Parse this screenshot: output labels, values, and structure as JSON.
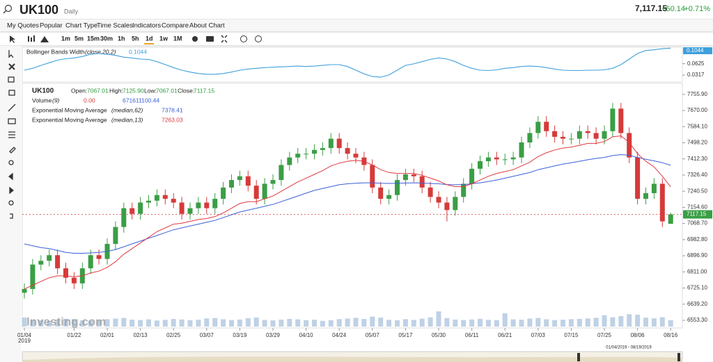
{
  "header": {
    "symbol": "UK100",
    "period": "Daily",
    "price": "7,117.15",
    "change": "+50.14",
    "change_pct": "+0.71%"
  },
  "menu": [
    "My Quotes",
    "Popular",
    "Chart Type",
    "Time Scales",
    "Indicators",
    "Compare",
    "About Chart"
  ],
  "intervals": [
    "1m",
    "5m",
    "15m",
    "30m",
    "1h",
    "5h",
    "1d",
    "1w",
    "1M"
  ],
  "watermark": "Investing.com",
  "navigator_range": "01/04/2019 - 08/19/2019",
  "chart_data": [
    {
      "type": "line",
      "title": "Bollinger Bands Width",
      "subtitle": "(close,20,2)",
      "color": "#3ea0dc",
      "values": [
        0.045,
        0.05,
        0.058,
        0.065,
        0.072,
        0.076,
        0.078,
        0.082,
        0.088,
        0.09,
        0.088,
        0.085,
        0.08,
        0.078,
        0.075,
        0.074,
        0.068,
        0.06,
        0.052,
        0.045,
        0.04,
        0.036,
        0.034,
        0.034,
        0.036,
        0.04,
        0.045,
        0.048,
        0.05,
        0.052,
        0.053,
        0.054,
        0.055,
        0.056,
        0.055,
        0.056,
        0.058,
        0.06,
        0.06,
        0.055,
        0.045,
        0.035,
        0.028,
        0.026,
        0.032,
        0.045,
        0.058,
        0.062,
        0.068,
        0.074,
        0.078,
        0.075,
        0.068,
        0.058,
        0.05,
        0.045,
        0.044,
        0.046,
        0.05,
        0.052,
        0.055,
        0.056,
        0.055,
        0.052,
        0.048,
        0.045,
        0.044,
        0.044,
        0.045,
        0.045,
        0.046,
        0.05,
        0.06,
        0.075,
        0.09,
        0.098,
        0.1,
        0.103,
        0.1044
      ],
      "ylim": [
        0.015,
        0.105
      ],
      "yticks": [
        0.0317,
        0.0625
      ]
    },
    {
      "type": "candlestick",
      "title": "UK100",
      "legend_labels": [
        "Open:",
        "High:",
        "Low:",
        "Close:"
      ],
      "last_labels": [
        "7067.01",
        "7125.90",
        "7067.01",
        "7117.15"
      ],
      "up_color": "#3a9e45",
      "down_color": "#d63a3a",
      "categories": [
        "01/04",
        null,
        null,
        null,
        null,
        null,
        "01/22",
        null,
        null,
        null,
        "02/01",
        null,
        null,
        null,
        "02/13",
        null,
        null,
        null,
        "02/25",
        null,
        null,
        null,
        "03/07",
        null,
        null,
        null,
        "03/19",
        null,
        null,
        null,
        "03/29",
        null,
        null,
        null,
        "04/10",
        null,
        null,
        null,
        "04/24",
        null,
        null,
        null,
        "05/07",
        null,
        null,
        null,
        "05/17",
        null,
        null,
        null,
        "05/30",
        null,
        null,
        null,
        "06/11",
        null,
        null,
        null,
        "06/21",
        null,
        null,
        null,
        "07/03",
        null,
        null,
        null,
        "07/15",
        null,
        null,
        null,
        "07/25",
        null,
        null,
        null,
        "08/06",
        null,
        null,
        null,
        "08/16"
      ],
      "x_sublabel": "2019",
      "open": [
        6700,
        6720,
        6850,
        6870,
        6900,
        6830,
        6780,
        6750,
        6830,
        6900,
        6880,
        6960,
        7050,
        7150,
        7120,
        7180,
        7190,
        7220,
        7200,
        7180,
        7120,
        7150,
        7180,
        7150,
        7200,
        7260,
        7300,
        7320,
        7270,
        7200,
        7280,
        7300,
        7380,
        7420,
        7440,
        7440,
        7460,
        7470,
        7520,
        7470,
        7440,
        7420,
        7380,
        7260,
        7200,
        7220,
        7300,
        7330,
        7320,
        7260,
        7210,
        7180,
        7140,
        7210,
        7280,
        7360,
        7400,
        7420,
        7410,
        7410,
        7420,
        7500,
        7550,
        7610,
        7560,
        7530,
        7520,
        7520,
        7560,
        7550,
        7520,
        7560,
        7680,
        7550,
        7420,
        7200,
        7230,
        7280,
        7067.01
      ],
      "high": [
        6750,
        6880,
        6900,
        6930,
        6930,
        6860,
        6810,
        6860,
        6930,
        6930,
        6990,
        7080,
        7180,
        7180,
        7210,
        7220,
        7250,
        7250,
        7230,
        7210,
        7180,
        7210,
        7210,
        7230,
        7290,
        7330,
        7350,
        7350,
        7300,
        7310,
        7330,
        7410,
        7450,
        7470,
        7470,
        7490,
        7500,
        7550,
        7550,
        7500,
        7470,
        7450,
        7410,
        7290,
        7250,
        7330,
        7360,
        7360,
        7350,
        7290,
        7240,
        7210,
        7240,
        7310,
        7390,
        7430,
        7450,
        7450,
        7440,
        7450,
        7530,
        7580,
        7640,
        7640,
        7590,
        7560,
        7550,
        7590,
        7590,
        7580,
        7590,
        7710,
        7710,
        7580,
        7450,
        7260,
        7310,
        7310,
        7125.9
      ],
      "low": [
        6670,
        6690,
        6820,
        6840,
        6800,
        6750,
        6720,
        6720,
        6800,
        6850,
        6850,
        6930,
        7020,
        7090,
        7090,
        7150,
        7160,
        7170,
        7150,
        7090,
        7090,
        7120,
        7120,
        7120,
        7170,
        7230,
        7270,
        7240,
        7170,
        7170,
        7250,
        7270,
        7350,
        7390,
        7410,
        7410,
        7430,
        7440,
        7440,
        7410,
        7390,
        7350,
        7230,
        7170,
        7170,
        7190,
        7270,
        7290,
        7230,
        7180,
        7150,
        7080,
        7110,
        7180,
        7250,
        7330,
        7370,
        7380,
        7380,
        7380,
        7390,
        7470,
        7520,
        7530,
        7500,
        7490,
        7490,
        7490,
        7520,
        7490,
        7490,
        7530,
        7520,
        7390,
        7170,
        7170,
        7200,
        7050,
        7067.01
      ],
      "close": [
        6720,
        6850,
        6870,
        6900,
        6830,
        6780,
        6750,
        6830,
        6900,
        6880,
        6960,
        7050,
        7150,
        7120,
        7180,
        7190,
        7220,
        7200,
        7180,
        7120,
        7150,
        7180,
        7150,
        7200,
        7260,
        7300,
        7320,
        7270,
        7200,
        7280,
        7300,
        7380,
        7420,
        7440,
        7440,
        7460,
        7470,
        7520,
        7470,
        7440,
        7420,
        7380,
        7260,
        7200,
        7220,
        7300,
        7330,
        7320,
        7260,
        7210,
        7180,
        7140,
        7210,
        7280,
        7360,
        7400,
        7420,
        7410,
        7410,
        7420,
        7500,
        7550,
        7610,
        7560,
        7530,
        7520,
        7520,
        7560,
        7550,
        7520,
        7560,
        7680,
        7550,
        7420,
        7200,
        7230,
        7280,
        7080,
        7117.15
      ],
      "series": [
        {
          "name": "Exponential Moving Average",
          "params": "(median,62)",
          "color": "#3a5fd9",
          "values": [
            6960,
            6950,
            6940,
            6935,
            6925,
            6915,
            6910,
            6910,
            6912,
            6915,
            6920,
            6930,
            6945,
            6960,
            6975,
            6990,
            7005,
            7020,
            7035,
            7045,
            7055,
            7065,
            7075,
            7085,
            7100,
            7115,
            7130,
            7140,
            7150,
            7160,
            7170,
            7185,
            7200,
            7215,
            7230,
            7245,
            7255,
            7265,
            7275,
            7280,
            7283,
            7285,
            7285,
            7283,
            7282,
            7283,
            7284,
            7285,
            7284,
            7282,
            7280,
            7276,
            7275,
            7276,
            7280,
            7285,
            7292,
            7300,
            7310,
            7320,
            7330,
            7340,
            7355,
            7365,
            7375,
            7385,
            7392,
            7400,
            7408,
            7415,
            7420,
            7430,
            7435,
            7432,
            7420,
            7410,
            7402,
            7392,
            7378.41
          ]
        },
        {
          "name": "Exponential Moving Average",
          "params": "(median,13)",
          "color": "#e0383e",
          "values": [
            6720,
            6740,
            6760,
            6780,
            6790,
            6790,
            6785,
            6790,
            6805,
            6815,
            6835,
            6865,
            6905,
            6935,
            6965,
            6995,
            7025,
            7045,
            7065,
            7070,
            7080,
            7090,
            7095,
            7105,
            7125,
            7150,
            7175,
            7185,
            7185,
            7200,
            7215,
            7240,
            7265,
            7290,
            7310,
            7330,
            7350,
            7375,
            7390,
            7400,
            7405,
            7400,
            7380,
            7355,
            7340,
            7335,
            7335,
            7335,
            7325,
            7310,
            7295,
            7275,
            7265,
            7265,
            7280,
            7300,
            7320,
            7335,
            7345,
            7355,
            7375,
            7395,
            7425,
            7445,
            7460,
            7470,
            7475,
            7485,
            7495,
            7495,
            7505,
            7530,
            7535,
            7500,
            7440,
            7400,
            7370,
            7320,
            7263.03
          ]
        }
      ],
      "ylim": [
        6520,
        7807
      ],
      "yticks": [
        {
          "value": 6553.3,
          "label": "6553.30"
        },
        {
          "value": 6639.2,
          "label": "6639.20"
        },
        {
          "value": 6725.1,
          "label": "6725.10"
        },
        {
          "value": 6811,
          "label": "6811.00"
        },
        {
          "value": 6896.9,
          "label": "6896.90"
        },
        {
          "value": 6982.8,
          "label": "6982.80"
        },
        {
          "value": 7068.7,
          "label": "7068.70"
        },
        {
          "value": 7154.6,
          "label": "7154.60"
        },
        {
          "value": 7240.5,
          "label": "7240.50"
        },
        {
          "value": 7326.4,
          "label": "7326.40"
        },
        {
          "value": 7412.3,
          "label": "7412.30"
        },
        {
          "value": 7498.2,
          "label": "7498.20"
        },
        {
          "value": 7584.1,
          "label": "7584.10"
        },
        {
          "value": 7670,
          "label": "7670.00"
        },
        {
          "value": 7755.9,
          "label": "7755.90"
        }
      ]
    },
    {
      "type": "bar",
      "title": "Volume",
      "subtitle": "(9)",
      "ma_label": "0.00",
      "color": "#b4c9e2",
      "values": [
        950000000.0,
        720000000.0,
        680000000.0,
        610000000.0,
        740000000.0,
        820000000.0,
        790000000.0,
        660000000.0,
        620000000.0,
        700000000.0,
        780000000.0,
        840000000.0,
        910000000.0,
        730000000.0,
        690000000.0,
        760000000.0,
        640000000.0,
        710000000.0,
        800000000.0,
        750000000.0,
        680000000.0,
        720000000.0,
        860000000.0,
        900000000.0,
        770000000.0,
        690000000.0,
        740000000.0,
        880000000.0,
        960000000.0,
        700000000.0,
        650000000.0,
        730000000.0,
        810000000.0,
        760000000.0,
        670000000.0,
        720000000.0,
        600000000.0,
        680000000.0,
        790000000.0,
        850000000.0,
        920000000.0,
        800000000.0,
        1050000000.0,
        940000000.0,
        710000000.0,
        660000000.0,
        780000000.0,
        700000000.0,
        830000000.0,
        970000000.0,
        1600000000.0,
        890000000.0,
        740000000.0,
        690000000.0,
        750000000.0,
        820000000.0,
        710000000.0,
        680000000.0,
        1400000000.0,
        760000000.0,
        730000000.0,
        840000000.0,
        900000000.0,
        770000000.0,
        690000000.0,
        720000000.0,
        780000000.0,
        810000000.0,
        860000000.0,
        930000000.0,
        1200000000.0,
        980000000.0,
        1100000000.0,
        1300000000.0,
        1250000000.0,
        940000000.0,
        870000000.0,
        990000000.0,
        671611100.44
      ],
      "ylim": [
        0,
        2200000000.0
      ]
    }
  ]
}
